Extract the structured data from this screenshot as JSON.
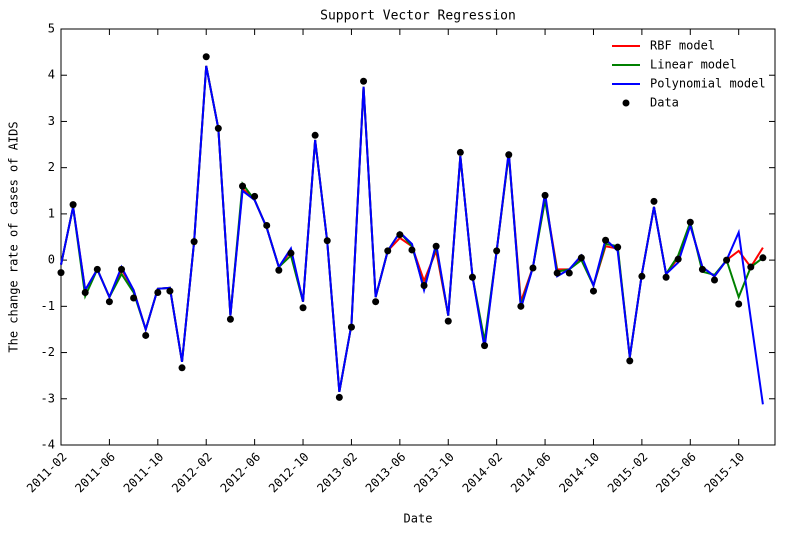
{
  "chart_data": {
    "type": "line",
    "title": "Support Vector Regression",
    "x_label": "Date",
    "y_label": "The change rate of cases of AIDS",
    "x": [
      "2011-02",
      "2011-03",
      "2011-04",
      "2011-05",
      "2011-06",
      "2011-07",
      "2011-08",
      "2011-09",
      "2011-10",
      "2011-11",
      "2011-12",
      "2012-01",
      "2012-02",
      "2012-03",
      "2012-04",
      "2012-05",
      "2012-06",
      "2012-07",
      "2012-08",
      "2012-09",
      "2012-10",
      "2012-11",
      "2012-12",
      "2013-01",
      "2013-02",
      "2013-03",
      "2013-04",
      "2013-05",
      "2013-06",
      "2013-07",
      "2013-08",
      "2013-09",
      "2013-10",
      "2013-11",
      "2013-12",
      "2014-01",
      "2014-02",
      "2014-03",
      "2014-04",
      "2014-05",
      "2014-06",
      "2014-07",
      "2014-08",
      "2014-09",
      "2014-10",
      "2014-11",
      "2014-12",
      "2015-01",
      "2015-02",
      "2015-03",
      "2015-04",
      "2015-05",
      "2015-06",
      "2015-07",
      "2015-08",
      "2015-09",
      "2015-10",
      "2015-11",
      "2015-12"
    ],
    "series": [
      {
        "name": "RBF model",
        "type": "line",
        "color": "#ff0000",
        "values": [
          -0.1,
          1.15,
          -0.65,
          -0.2,
          -0.8,
          -0.2,
          -0.65,
          -1.5,
          -0.62,
          -0.6,
          -2.2,
          0.4,
          4.2,
          2.85,
          -1.2,
          1.55,
          1.3,
          0.7,
          -0.15,
          0.2,
          -0.9,
          2.6,
          0.4,
          -2.85,
          -1.4,
          3.75,
          -0.8,
          0.2,
          0.48,
          0.3,
          -0.45,
          0.2,
          -1.2,
          2.25,
          -0.35,
          -1.85,
          0.2,
          2.3,
          -0.9,
          -0.15,
          1.35,
          -0.2,
          -0.2,
          0.05,
          -0.55,
          0.3,
          0.25,
          -2.1,
          -0.3,
          1.15,
          -0.3,
          0.05,
          0.75,
          -0.15,
          -0.35,
          0.0,
          0.2,
          -0.15,
          0.27
        ]
      },
      {
        "name": "Linear model",
        "type": "line",
        "color": "#008000",
        "values": [
          -0.1,
          1.15,
          -0.78,
          -0.2,
          -0.8,
          -0.3,
          -0.7,
          -1.5,
          -0.62,
          -0.6,
          -2.2,
          0.4,
          4.2,
          2.85,
          -1.2,
          1.65,
          1.3,
          0.7,
          -0.15,
          0.1,
          -0.9,
          2.6,
          0.4,
          -2.85,
          -1.4,
          3.75,
          -0.8,
          0.2,
          0.6,
          0.3,
          -0.6,
          0.3,
          -1.2,
          2.25,
          -0.35,
          -1.75,
          0.2,
          2.3,
          -1.0,
          -0.15,
          1.3,
          -0.25,
          -0.2,
          0.0,
          -0.55,
          0.35,
          0.3,
          -2.1,
          -0.3,
          1.15,
          -0.3,
          0.1,
          0.82,
          -0.25,
          -0.32,
          0.0,
          -0.8,
          -0.15,
          0.05
        ]
      },
      {
        "name": "Polynomial model",
        "type": "line",
        "color": "#0000ff",
        "values": [
          -0.1,
          1.15,
          -0.65,
          -0.2,
          -0.8,
          -0.15,
          -0.65,
          -1.5,
          -0.62,
          -0.6,
          -2.2,
          0.4,
          4.2,
          2.85,
          -1.2,
          1.5,
          1.3,
          0.7,
          -0.15,
          0.25,
          -0.9,
          2.6,
          0.4,
          -2.85,
          -1.4,
          3.75,
          -0.8,
          0.2,
          0.6,
          0.35,
          -0.65,
          0.35,
          -1.2,
          2.25,
          -0.35,
          -1.9,
          0.2,
          2.35,
          -1.05,
          -0.15,
          1.45,
          -0.35,
          -0.2,
          0.1,
          -0.55,
          0.45,
          0.2,
          -2.1,
          -0.3,
          1.15,
          -0.3,
          -0.05,
          0.75,
          -0.15,
          -0.35,
          0.0,
          0.6,
          -1.27,
          -3.12
        ]
      },
      {
        "name": "Data",
        "type": "scatter",
        "color": "#000000",
        "values": [
          -0.27,
          1.2,
          -0.7,
          -0.2,
          -0.9,
          -0.2,
          -0.82,
          -1.63,
          -0.7,
          -0.67,
          -2.33,
          0.4,
          4.4,
          2.85,
          -1.28,
          1.6,
          1.38,
          0.75,
          -0.22,
          0.15,
          -1.03,
          2.7,
          0.42,
          -2.97,
          -1.45,
          3.87,
          -0.9,
          0.2,
          0.55,
          0.22,
          -0.55,
          0.3,
          -1.32,
          2.33,
          -0.37,
          -1.85,
          0.2,
          2.28,
          -1.0,
          -0.17,
          1.4,
          -0.28,
          -0.28,
          0.05,
          -0.67,
          0.43,
          0.28,
          -2.18,
          -0.35,
          1.27,
          -0.37,
          0.02,
          0.82,
          -0.2,
          -0.43,
          0.0,
          -0.95,
          -0.15,
          0.05
        ]
      }
    ],
    "xlim": [
      "2011-02",
      "2016-01"
    ],
    "xticks": [
      "2011-02",
      "2011-06",
      "2011-10",
      "2012-02",
      "2012-06",
      "2012-10",
      "2013-02",
      "2013-06",
      "2013-10",
      "2014-02",
      "2014-06",
      "2014-10",
      "2015-02",
      "2015-06",
      "2015-10"
    ],
    "ylim": [
      -4,
      5
    ],
    "yticks": [
      -4,
      -3,
      -2,
      -1,
      0,
      1,
      2,
      3,
      4,
      5
    ],
    "legend": "upper right"
  }
}
